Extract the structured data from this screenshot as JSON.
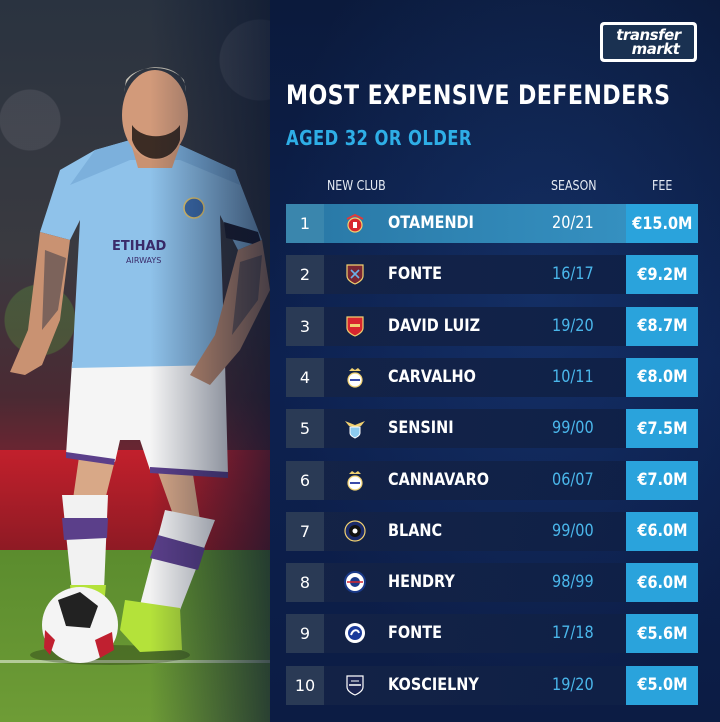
{
  "logo": {
    "line1": "transfer",
    "line2": "markt"
  },
  "title": "MOST EXPENSIVE DEFENDERS",
  "subtitle": "AGED 32 OR OLDER",
  "columns": {
    "club": "NEW CLUB",
    "season": "SEASON",
    "fee": "FEE"
  },
  "colors": {
    "accent": "#2aa3dc",
    "panel": "#0d2150",
    "highlight_row": "#3590c0"
  },
  "rows": [
    {
      "rank": "1",
      "name": "OTAMENDI",
      "season": "20/21",
      "fee": "€15.0M",
      "club_crest": "benfica-crest-icon"
    },
    {
      "rank": "2",
      "name": "FONTE",
      "season": "16/17",
      "fee": "€9.2M",
      "club_crest": "west-ham-crest-icon"
    },
    {
      "rank": "3",
      "name": "DAVID LUIZ",
      "season": "19/20",
      "fee": "€8.7M",
      "club_crest": "arsenal-crest-icon"
    },
    {
      "rank": "4",
      "name": "CARVALHO",
      "season": "10/11",
      "fee": "€8.0M",
      "club_crest": "real-madrid-crest-icon"
    },
    {
      "rank": "5",
      "name": "SENSINI",
      "season": "99/00",
      "fee": "€7.5M",
      "club_crest": "lazio-crest-icon"
    },
    {
      "rank": "6",
      "name": "CANNAVARO",
      "season": "06/07",
      "fee": "€7.0M",
      "club_crest": "real-madrid-crest-icon"
    },
    {
      "rank": "7",
      "name": "BLANC",
      "season": "99/00",
      "fee": "€6.0M",
      "club_crest": "inter-crest-icon"
    },
    {
      "rank": "8",
      "name": "HENDRY",
      "season": "98/99",
      "fee": "€6.0M",
      "club_crest": "rangers-crest-icon"
    },
    {
      "rank": "9",
      "name": "FONTE",
      "season": "17/18",
      "fee": "€5.6M",
      "club_crest": "dalian-crest-icon"
    },
    {
      "rank": "10",
      "name": "KOSCIELNY",
      "season": "19/20",
      "fee": "€5.0M",
      "club_crest": "bordeaux-crest-icon"
    }
  ]
}
